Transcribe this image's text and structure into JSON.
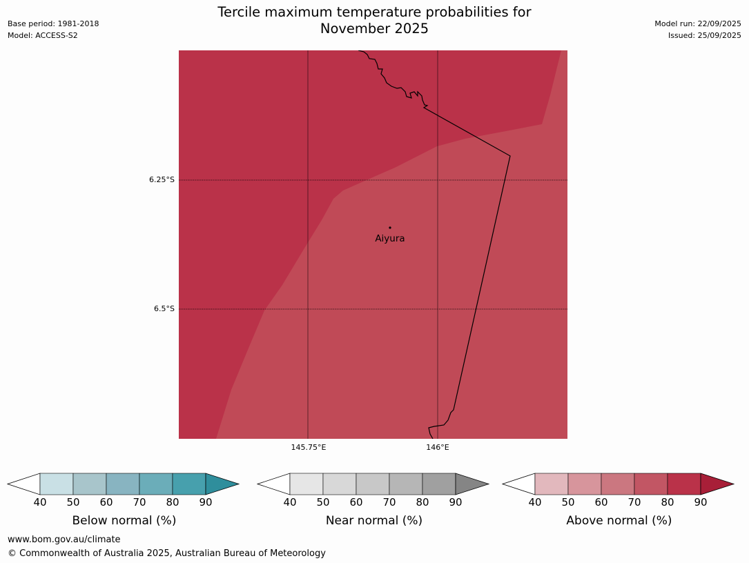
{
  "header": {
    "title_line1": "Tercile maximum temperature probabilities for",
    "title_line2": "November 2025",
    "base_period": "Base period: 1981-2018",
    "model": "Model: ACCESS-S2",
    "model_run": "Model run: 22/09/2025",
    "issued": "Issued: 25/09/2025"
  },
  "map": {
    "latitude_labels": [
      "6.25°S",
      "6.5°S"
    ],
    "longitude_labels": [
      "145.75°E",
      "146°E"
    ],
    "place": {
      "name": "Aiyura"
    },
    "region_colors": {
      "upper_band": "#ba3249",
      "lower_band": "#c04a57",
      "border": "#000000"
    }
  },
  "colorbars": [
    {
      "name": "below",
      "title": "Below normal (%)",
      "ticks": [
        "40",
        "50",
        "60",
        "70",
        "80",
        "90"
      ],
      "colors": [
        "#ffffff",
        "#c9e0e5",
        "#a8c5cb",
        "#88b4c1",
        "#6badb9",
        "#47a0ad",
        "#2f8e9c"
      ]
    },
    {
      "name": "near",
      "title": "Near normal (%)",
      "ticks": [
        "40",
        "50",
        "60",
        "70",
        "80",
        "90"
      ],
      "colors": [
        "#ffffff",
        "#e6e6e6",
        "#d8d8d8",
        "#c8c8c8",
        "#b6b6b6",
        "#a0a0a0",
        "#858585"
      ]
    },
    {
      "name": "above",
      "title": "Above normal (%)",
      "ticks": [
        "40",
        "50",
        "60",
        "70",
        "80",
        "90"
      ],
      "colors": [
        "#ffffff",
        "#e2b8bd",
        "#d7959c",
        "#cb7780",
        "#c25664",
        "#ba3249",
        "#a81f38"
      ]
    }
  ],
  "footer": {
    "url": "www.bom.gov.au/climate",
    "copyright": "© Commonwealth of Australia 2025, Australian Bureau of Meteorology"
  }
}
